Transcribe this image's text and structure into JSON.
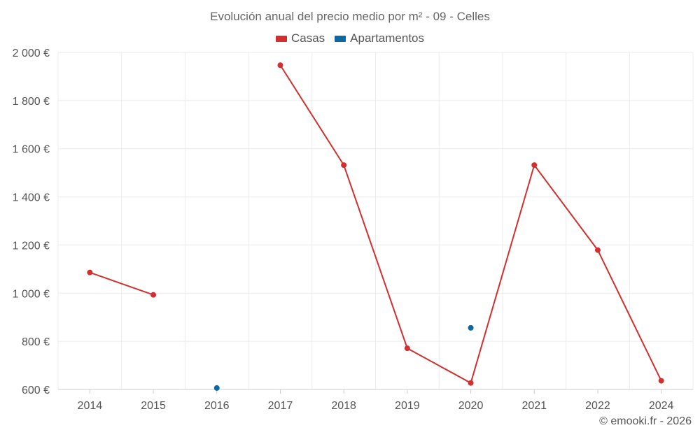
{
  "chart_data": {
    "type": "line",
    "title": "Evolución anual del precio medio por m² - 09 - Celles",
    "categories": [
      "2014",
      "2015",
      "2016",
      "2017",
      "2018",
      "2019",
      "2020",
      "2021",
      "2022",
      "2024"
    ],
    "series": [
      {
        "name": "Casas",
        "color": "#d32f2f",
        "values": [
          1086,
          993,
          null,
          1947,
          1532,
          771,
          627,
          1532,
          1179,
          636
        ]
      },
      {
        "name": "Apartamentos",
        "color": "#0b6aa2",
        "values": [
          null,
          null,
          606,
          null,
          null,
          null,
          856,
          null,
          null,
          null
        ]
      }
    ],
    "ylim": [
      600,
      2000
    ],
    "yticks": [
      600,
      800,
      1000,
      1200,
      1400,
      1600,
      1800,
      2000
    ],
    "ytick_labels": [
      "600 €",
      "800 €",
      "1 000 €",
      "1 200 €",
      "1 400 €",
      "1 600 €",
      "1 800 €",
      "2 000 €"
    ],
    "grid": true,
    "legend_position": "top-center",
    "xlabel": "",
    "ylabel": ""
  },
  "credit": "© emooki.fr - 2026"
}
